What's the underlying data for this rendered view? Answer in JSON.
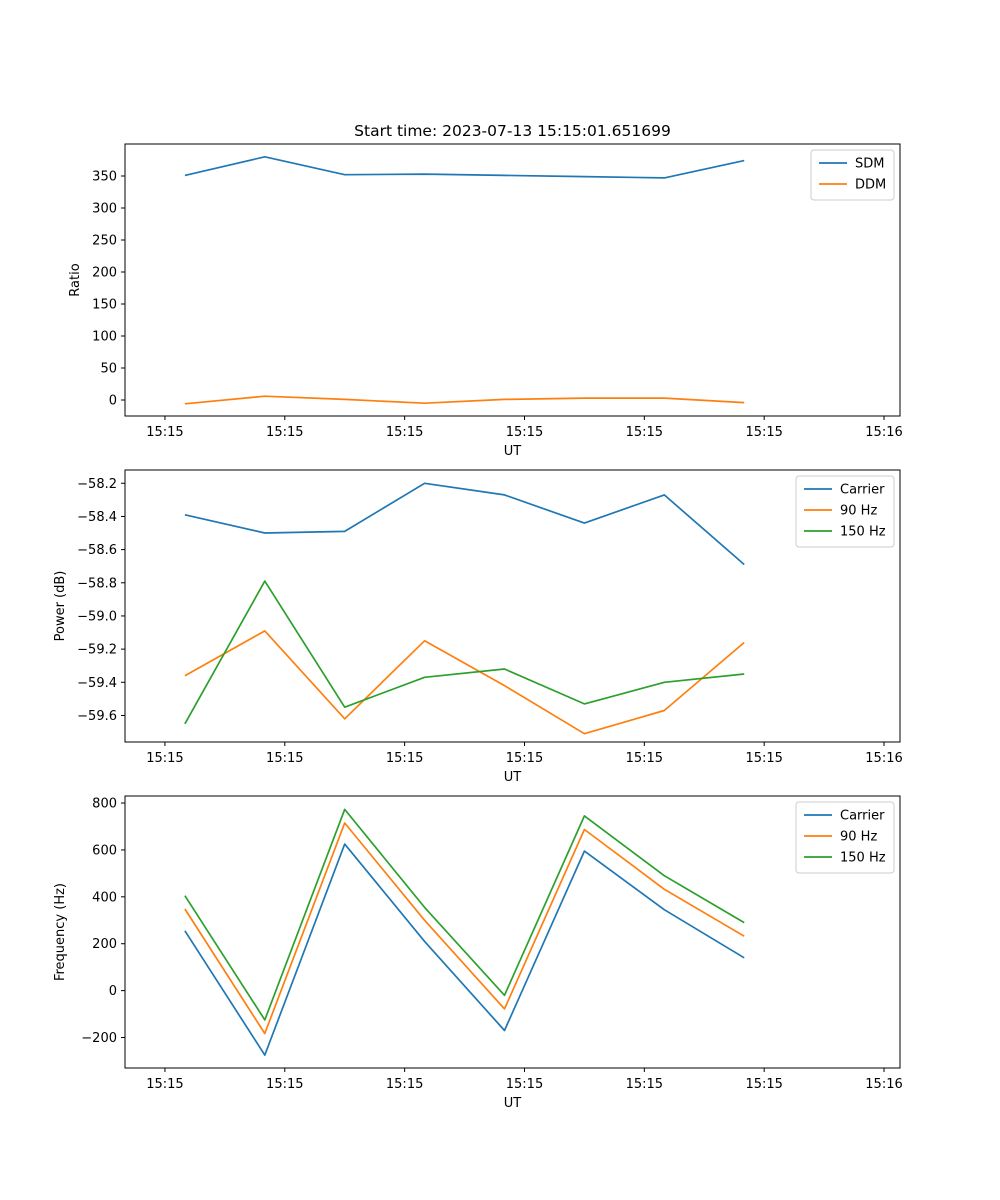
{
  "chart_data": [
    {
      "type": "line",
      "title": "Start time: 2023-07-13 15:15:01.651699",
      "xlabel": "UT",
      "ylabel": "Ratio",
      "x_tick_labels": [
        "15:15",
        "15:15",
        "15:15",
        "15:15",
        "15:15",
        "15:15",
        "15:16"
      ],
      "xlim": [
        -0.25,
        4.6
      ],
      "x": [
        0.125,
        0.625,
        1.125,
        1.625,
        2.125,
        2.625,
        3.125,
        3.625
      ],
      "ylim": [
        -25,
        400
      ],
      "yticks": [
        0,
        50,
        100,
        150,
        200,
        250,
        300,
        350
      ],
      "legend": "top-right",
      "series": [
        {
          "name": "SDM",
          "color": "#1f77b4",
          "values": [
            351,
            380,
            352,
            353,
            351,
            349,
            347,
            374
          ]
        },
        {
          "name": "DDM",
          "color": "#ff7f0e",
          "values": [
            -6,
            6,
            1,
            -5,
            1,
            3,
            3,
            -4
          ]
        }
      ]
    },
    {
      "type": "line",
      "title": "",
      "xlabel": "UT",
      "ylabel": "Power (dB)",
      "x_tick_labels": [
        "15:15",
        "15:15",
        "15:15",
        "15:15",
        "15:15",
        "15:15",
        "15:16"
      ],
      "xlim": [
        -0.25,
        4.6
      ],
      "x": [
        0.125,
        0.625,
        1.125,
        1.625,
        2.125,
        2.625,
        3.125,
        3.625
      ],
      "ylim": [
        -59.76,
        -58.12
      ],
      "yticks": [
        -59.6,
        -59.4,
        -59.2,
        -59.0,
        -58.8,
        -58.6,
        -58.4,
        -58.2
      ],
      "ytick_labels": [
        "−59.6",
        "−59.4",
        "−59.2",
        "−59.0",
        "−58.8",
        "−58.6",
        "−58.4",
        "−58.2"
      ],
      "legend": "top-right",
      "series": [
        {
          "name": "Carrier",
          "color": "#1f77b4",
          "values": [
            -58.39,
            -58.5,
            -58.49,
            -58.2,
            -58.27,
            -58.44,
            -58.27,
            -58.69
          ]
        },
        {
          "name": "90 Hz",
          "color": "#ff7f0e",
          "values": [
            -59.36,
            -59.09,
            -59.62,
            -59.15,
            -59.42,
            -59.71,
            -59.57,
            -59.16
          ]
        },
        {
          "name": "150 Hz",
          "color": "#2ca02c",
          "values": [
            -59.65,
            -58.79,
            -59.55,
            -59.37,
            -59.32,
            -59.53,
            -59.4,
            -59.35
          ]
        }
      ]
    },
    {
      "type": "line",
      "title": "",
      "xlabel": "UT",
      "ylabel": "Frequency (Hz)",
      "x_tick_labels": [
        "15:15",
        "15:15",
        "15:15",
        "15:15",
        "15:15",
        "15:15",
        "15:16"
      ],
      "xlim": [
        -0.25,
        4.6
      ],
      "x": [
        0.125,
        0.625,
        1.125,
        1.625,
        2.125,
        2.625,
        3.125,
        3.625
      ],
      "ylim": [
        -330,
        830
      ],
      "yticks": [
        -200,
        0,
        200,
        400,
        600,
        800
      ],
      "ytick_labels": [
        "−200",
        "0",
        "200",
        "400",
        "600",
        "800"
      ],
      "legend": "top-right",
      "series": [
        {
          "name": "Carrier",
          "color": "#1f77b4",
          "values": [
            255,
            -275,
            625,
            210,
            -170,
            595,
            345,
            140
          ]
        },
        {
          "name": "90 Hz",
          "color": "#ff7f0e",
          "values": [
            348,
            -183,
            715,
            300,
            -78,
            687,
            432,
            232
          ]
        },
        {
          "name": "150 Hz",
          "color": "#2ca02c",
          "values": [
            405,
            -125,
            773,
            355,
            -20,
            745,
            490,
            290
          ]
        }
      ]
    }
  ]
}
